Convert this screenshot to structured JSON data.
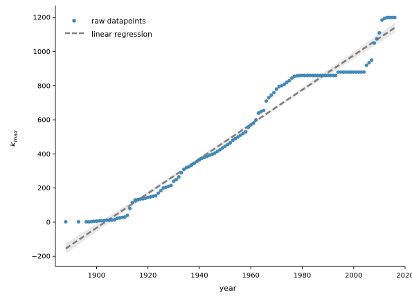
{
  "chart_data": {
    "type": "scatter",
    "xlabel": "year",
    "ylabel": "k",
    "ylabel_sub": "max",
    "xlim": [
      1884,
      2020
    ],
    "ylim": [
      -260,
      1270
    ],
    "xticks": [
      1900,
      1920,
      1940,
      1960,
      1980,
      2000,
      2020
    ],
    "yticks": [
      -200,
      0,
      200,
      400,
      600,
      800,
      1000,
      1200
    ],
    "grid": false,
    "legend_position": "top-left",
    "colors": {
      "points": "#3a83b6",
      "line": "#7f7f7f",
      "band": "#d9d9d9",
      "axis": "#000000"
    },
    "series": [
      {
        "name": "raw datapoints",
        "kind": "scatter",
        "points": [
          [
            1888,
            2
          ],
          [
            1893,
            2
          ],
          [
            1896,
            2
          ],
          [
            1897,
            2
          ],
          [
            1898,
            3
          ],
          [
            1899,
            5
          ],
          [
            1900,
            6
          ],
          [
            1901,
            8
          ],
          [
            1902,
            8
          ],
          [
            1903,
            10
          ],
          [
            1904,
            12
          ],
          [
            1905,
            12
          ],
          [
            1906,
            12
          ],
          [
            1907,
            14
          ],
          [
            1908,
            22
          ],
          [
            1909,
            25
          ],
          [
            1910,
            28
          ],
          [
            1911,
            30
          ],
          [
            1912,
            40
          ],
          [
            1913,
            80
          ],
          [
            1914,
            115
          ],
          [
            1915,
            130
          ],
          [
            1916,
            132
          ],
          [
            1917,
            135
          ],
          [
            1918,
            137
          ],
          [
            1919,
            140
          ],
          [
            1920,
            145
          ],
          [
            1921,
            148
          ],
          [
            1922,
            152
          ],
          [
            1923,
            155
          ],
          [
            1924,
            170
          ],
          [
            1925,
            185
          ],
          [
            1926,
            200
          ],
          [
            1927,
            205
          ],
          [
            1928,
            210
          ],
          [
            1929,
            215
          ],
          [
            1930,
            240
          ],
          [
            1931,
            250
          ],
          [
            1932,
            265
          ],
          [
            1933,
            290
          ],
          [
            1934,
            310
          ],
          [
            1935,
            320
          ],
          [
            1936,
            325
          ],
          [
            1937,
            335
          ],
          [
            1938,
            345
          ],
          [
            1939,
            355
          ],
          [
            1940,
            365
          ],
          [
            1941,
            375
          ],
          [
            1942,
            380
          ],
          [
            1943,
            385
          ],
          [
            1944,
            393
          ],
          [
            1945,
            398
          ],
          [
            1946,
            405
          ],
          [
            1947,
            415
          ],
          [
            1948,
            425
          ],
          [
            1949,
            435
          ],
          [
            1950,
            445
          ],
          [
            1951,
            455
          ],
          [
            1952,
            465
          ],
          [
            1953,
            480
          ],
          [
            1954,
            490
          ],
          [
            1955,
            500
          ],
          [
            1956,
            510
          ],
          [
            1957,
            520
          ],
          [
            1958,
            530
          ],
          [
            1959,
            555
          ],
          [
            1960,
            570
          ],
          [
            1961,
            580
          ],
          [
            1962,
            600
          ],
          [
            1963,
            640
          ],
          [
            1964,
            648
          ],
          [
            1965,
            655
          ],
          [
            1966,
            710
          ],
          [
            1967,
            730
          ],
          [
            1968,
            745
          ],
          [
            1969,
            760
          ],
          [
            1970,
            780
          ],
          [
            1971,
            795
          ],
          [
            1972,
            800
          ],
          [
            1973,
            808
          ],
          [
            1974,
            820
          ],
          [
            1975,
            830
          ],
          [
            1976,
            845
          ],
          [
            1977,
            855
          ],
          [
            1978,
            858
          ],
          [
            1979,
            860
          ],
          [
            1980,
            860
          ],
          [
            1981,
            860
          ],
          [
            1982,
            860
          ],
          [
            1983,
            860
          ],
          [
            1984,
            860
          ],
          [
            1985,
            860
          ],
          [
            1986,
            860
          ],
          [
            1987,
            860
          ],
          [
            1988,
            860
          ],
          [
            1989,
            860
          ],
          [
            1990,
            860
          ],
          [
            1991,
            860
          ],
          [
            1992,
            860
          ],
          [
            1993,
            860
          ],
          [
            1994,
            880
          ],
          [
            1995,
            880
          ],
          [
            1996,
            880
          ],
          [
            1997,
            880
          ],
          [
            1998,
            880
          ],
          [
            1999,
            880
          ],
          [
            2000,
            880
          ],
          [
            2001,
            880
          ],
          [
            2002,
            880
          ],
          [
            2003,
            880
          ],
          [
            2004,
            880
          ],
          [
            2005,
            920
          ],
          [
            2006,
            935
          ],
          [
            2007,
            950
          ],
          [
            2008,
            1050
          ],
          [
            2009,
            1075
          ],
          [
            2010,
            1110
          ],
          [
            2011,
            1185
          ],
          [
            2012,
            1195
          ],
          [
            2013,
            1200
          ],
          [
            2014,
            1200
          ],
          [
            2015,
            1200
          ],
          [
            2016,
            1200
          ]
        ]
      },
      {
        "name": "linear regression",
        "kind": "line",
        "style": "dashed",
        "x": [
          1888,
          2016
        ],
        "y": [
          -155,
          1140
        ],
        "ci_halfwidth_ends": 30,
        "ci_halfwidth_mid": 8
      }
    ]
  }
}
